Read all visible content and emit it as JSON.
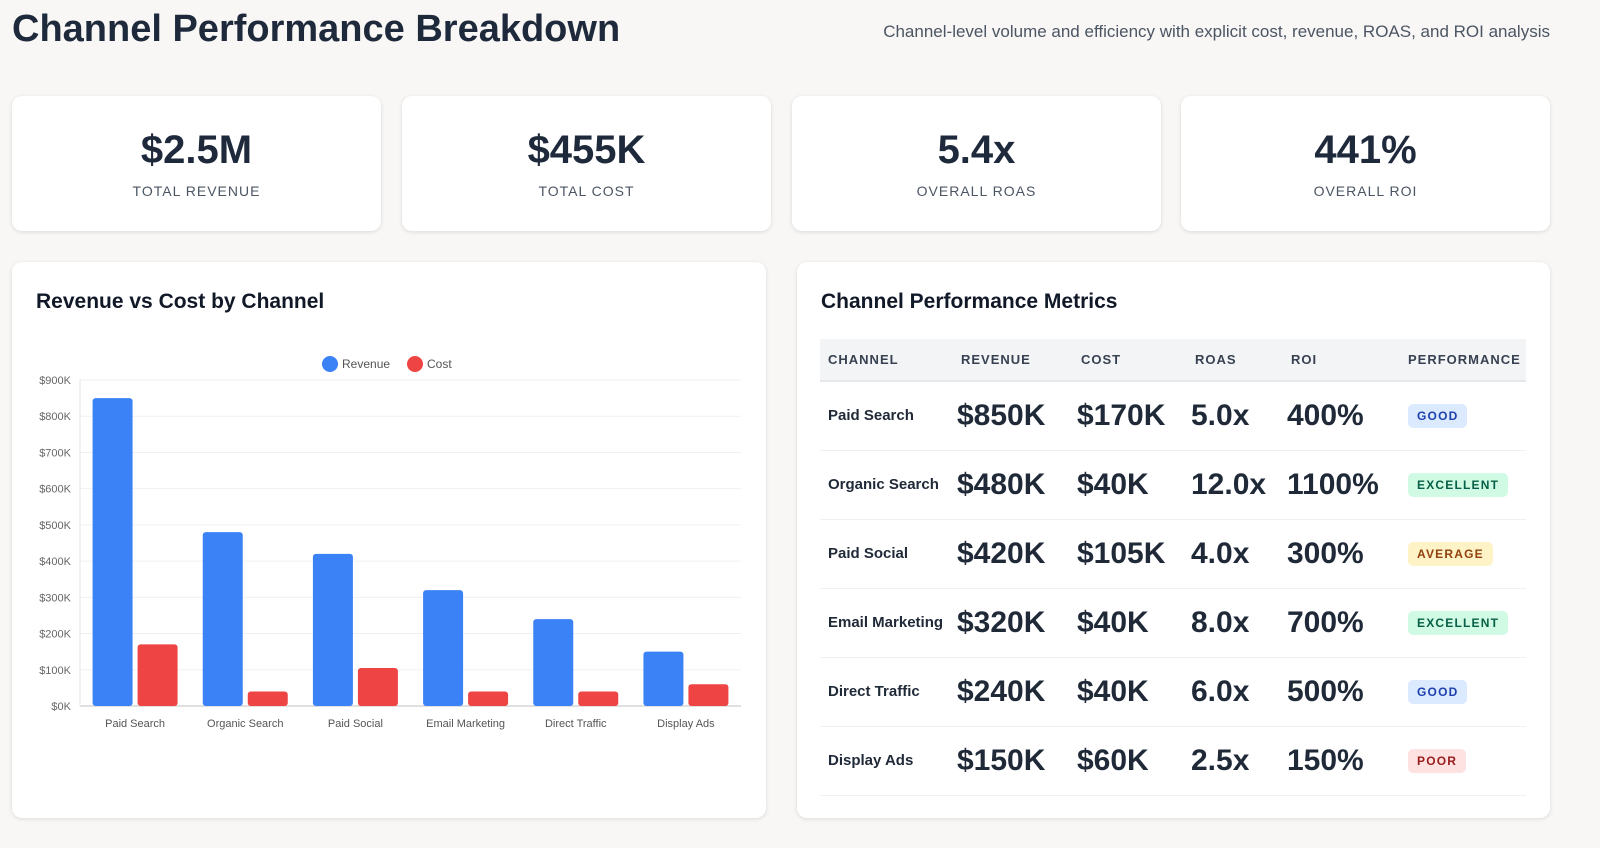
{
  "header": {
    "title": "Channel Performance Breakdown",
    "subtitle": "Channel-level volume and efficiency with explicit cost, revenue, ROAS, and ROI analysis"
  },
  "kpis": [
    {
      "value": "$2.5M",
      "label": "TOTAL REVENUE"
    },
    {
      "value": "$455K",
      "label": "TOTAL COST"
    },
    {
      "value": "5.4x",
      "label": "OVERALL ROAS"
    },
    {
      "value": "441%",
      "label": "OVERALL ROI"
    }
  ],
  "chart_panel": {
    "title": "Revenue vs Cost by Channel"
  },
  "chart_data": {
    "type": "bar",
    "title": "",
    "categories": [
      "Paid Search",
      "Organic Search",
      "Paid Social",
      "Email Marketing",
      "Direct Traffic",
      "Display Ads"
    ],
    "series": [
      {
        "name": "Revenue",
        "color": "#3b82f6",
        "values": [
          850000,
          480000,
          420000,
          320000,
          240000,
          150000
        ]
      },
      {
        "name": "Cost",
        "color": "#ef4444",
        "values": [
          170000,
          40000,
          105000,
          40000,
          40000,
          60000
        ]
      }
    ],
    "ylim": [
      0,
      900000
    ],
    "yticks": [
      "$0K",
      "$100K",
      "$200K",
      "$300K",
      "$400K",
      "$500K",
      "$600K",
      "$700K",
      "$800K",
      "$900K"
    ],
    "legend": "top-center",
    "grid": true
  },
  "table_panel": {
    "title": "Channel Performance Metrics",
    "columns": [
      "CHANNEL",
      "REVENUE",
      "COST",
      "ROAS",
      "ROI",
      "PERFORMANCE"
    ],
    "rows": [
      {
        "channel": "Paid Search",
        "revenue": "$850K",
        "cost": "$170K",
        "roas": "5.0x",
        "roi": "400%",
        "performance": "GOOD"
      },
      {
        "channel": "Organic Search",
        "revenue": "$480K",
        "cost": "$40K",
        "roas": "12.0x",
        "roi": "1100%",
        "performance": "EXCELLENT"
      },
      {
        "channel": "Paid Social",
        "revenue": "$420K",
        "cost": "$105K",
        "roas": "4.0x",
        "roi": "300%",
        "performance": "AVERAGE"
      },
      {
        "channel": "Email Marketing",
        "revenue": "$320K",
        "cost": "$40K",
        "roas": "8.0x",
        "roi": "700%",
        "performance": "EXCELLENT"
      },
      {
        "channel": "Direct Traffic",
        "revenue": "$240K",
        "cost": "$40K",
        "roas": "6.0x",
        "roi": "500%",
        "performance": "GOOD"
      },
      {
        "channel": "Display Ads",
        "revenue": "$150K",
        "cost": "$60K",
        "roas": "2.5x",
        "roi": "150%",
        "performance": "POOR"
      }
    ],
    "badge_colors": {
      "GOOD": {
        "bg": "#dbeafe",
        "fg": "#1e40af"
      },
      "EXCELLENT": {
        "bg": "#d1fae5",
        "fg": "#065f46"
      },
      "AVERAGE": {
        "bg": "#fef3c7",
        "fg": "#92400e"
      },
      "POOR": {
        "bg": "#fee2e2",
        "fg": "#991b1b"
      }
    }
  }
}
